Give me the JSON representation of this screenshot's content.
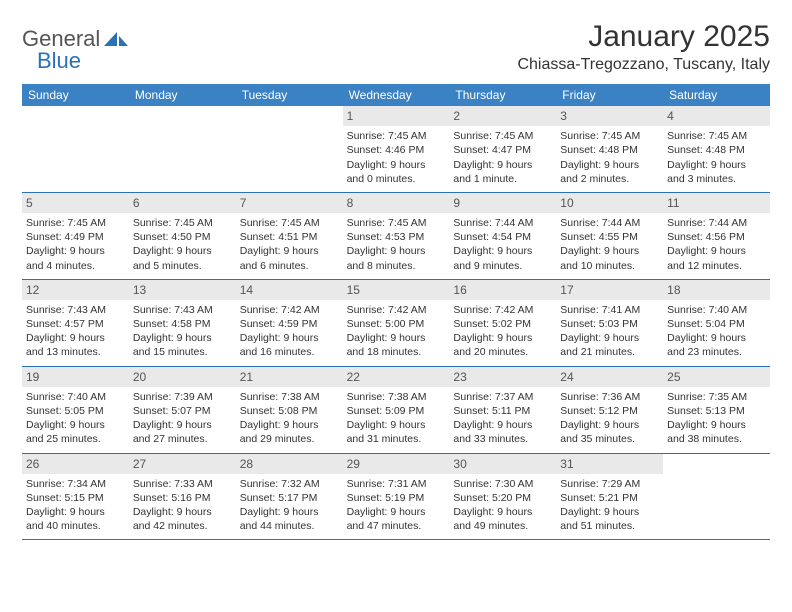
{
  "logo": {
    "word1": "General",
    "word2": "Blue"
  },
  "title": "January 2025",
  "location": "Chiassa-Tregozzano, Tuscany, Italy",
  "colors": {
    "header_bg": "#3b82c4",
    "header_text": "#ffffff",
    "daynum_bg": "#e9e9e9",
    "rule": "#2a72b5",
    "logo_accent": "#2a72b5",
    "logo_gray": "#555555"
  },
  "dow": [
    "Sunday",
    "Monday",
    "Tuesday",
    "Wednesday",
    "Thursday",
    "Friday",
    "Saturday"
  ],
  "weeks": [
    [
      {
        "n": "",
        "sunrise": "",
        "sunset": "",
        "daylight": ""
      },
      {
        "n": "",
        "sunrise": "",
        "sunset": "",
        "daylight": ""
      },
      {
        "n": "",
        "sunrise": "",
        "sunset": "",
        "daylight": ""
      },
      {
        "n": "1",
        "sunrise": "Sunrise: 7:45 AM",
        "sunset": "Sunset: 4:46 PM",
        "daylight": "Daylight: 9 hours and 0 minutes."
      },
      {
        "n": "2",
        "sunrise": "Sunrise: 7:45 AM",
        "sunset": "Sunset: 4:47 PM",
        "daylight": "Daylight: 9 hours and 1 minute."
      },
      {
        "n": "3",
        "sunrise": "Sunrise: 7:45 AM",
        "sunset": "Sunset: 4:48 PM",
        "daylight": "Daylight: 9 hours and 2 minutes."
      },
      {
        "n": "4",
        "sunrise": "Sunrise: 7:45 AM",
        "sunset": "Sunset: 4:48 PM",
        "daylight": "Daylight: 9 hours and 3 minutes."
      }
    ],
    [
      {
        "n": "5",
        "sunrise": "Sunrise: 7:45 AM",
        "sunset": "Sunset: 4:49 PM",
        "daylight": "Daylight: 9 hours and 4 minutes."
      },
      {
        "n": "6",
        "sunrise": "Sunrise: 7:45 AM",
        "sunset": "Sunset: 4:50 PM",
        "daylight": "Daylight: 9 hours and 5 minutes."
      },
      {
        "n": "7",
        "sunrise": "Sunrise: 7:45 AM",
        "sunset": "Sunset: 4:51 PM",
        "daylight": "Daylight: 9 hours and 6 minutes."
      },
      {
        "n": "8",
        "sunrise": "Sunrise: 7:45 AM",
        "sunset": "Sunset: 4:53 PM",
        "daylight": "Daylight: 9 hours and 8 minutes."
      },
      {
        "n": "9",
        "sunrise": "Sunrise: 7:44 AM",
        "sunset": "Sunset: 4:54 PM",
        "daylight": "Daylight: 9 hours and 9 minutes."
      },
      {
        "n": "10",
        "sunrise": "Sunrise: 7:44 AM",
        "sunset": "Sunset: 4:55 PM",
        "daylight": "Daylight: 9 hours and 10 minutes."
      },
      {
        "n": "11",
        "sunrise": "Sunrise: 7:44 AM",
        "sunset": "Sunset: 4:56 PM",
        "daylight": "Daylight: 9 hours and 12 minutes."
      }
    ],
    [
      {
        "n": "12",
        "sunrise": "Sunrise: 7:43 AM",
        "sunset": "Sunset: 4:57 PM",
        "daylight": "Daylight: 9 hours and 13 minutes."
      },
      {
        "n": "13",
        "sunrise": "Sunrise: 7:43 AM",
        "sunset": "Sunset: 4:58 PM",
        "daylight": "Daylight: 9 hours and 15 minutes."
      },
      {
        "n": "14",
        "sunrise": "Sunrise: 7:42 AM",
        "sunset": "Sunset: 4:59 PM",
        "daylight": "Daylight: 9 hours and 16 minutes."
      },
      {
        "n": "15",
        "sunrise": "Sunrise: 7:42 AM",
        "sunset": "Sunset: 5:00 PM",
        "daylight": "Daylight: 9 hours and 18 minutes."
      },
      {
        "n": "16",
        "sunrise": "Sunrise: 7:42 AM",
        "sunset": "Sunset: 5:02 PM",
        "daylight": "Daylight: 9 hours and 20 minutes."
      },
      {
        "n": "17",
        "sunrise": "Sunrise: 7:41 AM",
        "sunset": "Sunset: 5:03 PM",
        "daylight": "Daylight: 9 hours and 21 minutes."
      },
      {
        "n": "18",
        "sunrise": "Sunrise: 7:40 AM",
        "sunset": "Sunset: 5:04 PM",
        "daylight": "Daylight: 9 hours and 23 minutes."
      }
    ],
    [
      {
        "n": "19",
        "sunrise": "Sunrise: 7:40 AM",
        "sunset": "Sunset: 5:05 PM",
        "daylight": "Daylight: 9 hours and 25 minutes."
      },
      {
        "n": "20",
        "sunrise": "Sunrise: 7:39 AM",
        "sunset": "Sunset: 5:07 PM",
        "daylight": "Daylight: 9 hours and 27 minutes."
      },
      {
        "n": "21",
        "sunrise": "Sunrise: 7:38 AM",
        "sunset": "Sunset: 5:08 PM",
        "daylight": "Daylight: 9 hours and 29 minutes."
      },
      {
        "n": "22",
        "sunrise": "Sunrise: 7:38 AM",
        "sunset": "Sunset: 5:09 PM",
        "daylight": "Daylight: 9 hours and 31 minutes."
      },
      {
        "n": "23",
        "sunrise": "Sunrise: 7:37 AM",
        "sunset": "Sunset: 5:11 PM",
        "daylight": "Daylight: 9 hours and 33 minutes."
      },
      {
        "n": "24",
        "sunrise": "Sunrise: 7:36 AM",
        "sunset": "Sunset: 5:12 PM",
        "daylight": "Daylight: 9 hours and 35 minutes."
      },
      {
        "n": "25",
        "sunrise": "Sunrise: 7:35 AM",
        "sunset": "Sunset: 5:13 PM",
        "daylight": "Daylight: 9 hours and 38 minutes."
      }
    ],
    [
      {
        "n": "26",
        "sunrise": "Sunrise: 7:34 AM",
        "sunset": "Sunset: 5:15 PM",
        "daylight": "Daylight: 9 hours and 40 minutes."
      },
      {
        "n": "27",
        "sunrise": "Sunrise: 7:33 AM",
        "sunset": "Sunset: 5:16 PM",
        "daylight": "Daylight: 9 hours and 42 minutes."
      },
      {
        "n": "28",
        "sunrise": "Sunrise: 7:32 AM",
        "sunset": "Sunset: 5:17 PM",
        "daylight": "Daylight: 9 hours and 44 minutes."
      },
      {
        "n": "29",
        "sunrise": "Sunrise: 7:31 AM",
        "sunset": "Sunset: 5:19 PM",
        "daylight": "Daylight: 9 hours and 47 minutes."
      },
      {
        "n": "30",
        "sunrise": "Sunrise: 7:30 AM",
        "sunset": "Sunset: 5:20 PM",
        "daylight": "Daylight: 9 hours and 49 minutes."
      },
      {
        "n": "31",
        "sunrise": "Sunrise: 7:29 AM",
        "sunset": "Sunset: 5:21 PM",
        "daylight": "Daylight: 9 hours and 51 minutes."
      },
      {
        "n": "",
        "sunrise": "",
        "sunset": "",
        "daylight": ""
      }
    ]
  ]
}
